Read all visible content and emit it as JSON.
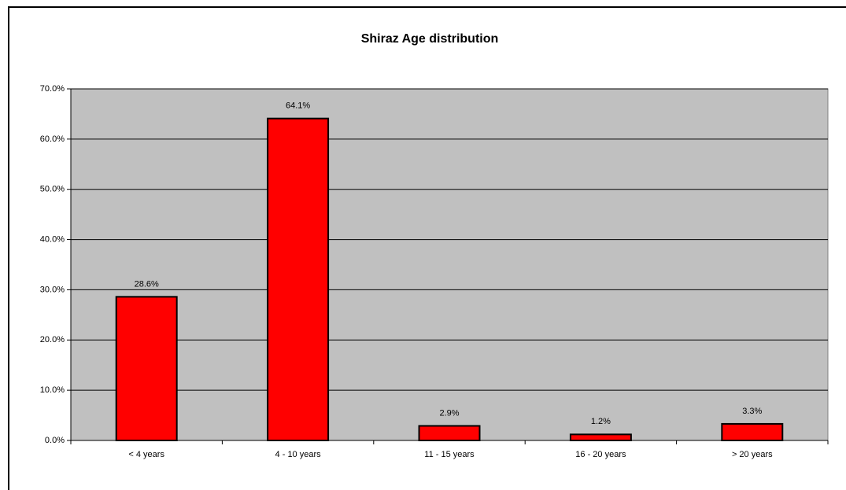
{
  "chart_data": {
    "type": "bar",
    "title": "Shiraz Age distribution",
    "categories": [
      "< 4 years",
      "4 - 10 years",
      "11 - 15 years",
      "16 - 20 years",
      "> 20 years"
    ],
    "values": [
      28.6,
      64.1,
      2.9,
      1.2,
      3.3
    ],
    "value_labels": [
      "28.6%",
      "64.1%",
      "2.9%",
      "1.2%",
      "3.3%"
    ],
    "color": "#ff0000",
    "ylim": [
      0,
      70
    ],
    "yticks": [
      {
        "value": 0,
        "label": "0.0%"
      },
      {
        "value": 10,
        "label": "10.0%"
      },
      {
        "value": 20,
        "label": "20.0%"
      },
      {
        "value": 30,
        "label": "30.0%"
      },
      {
        "value": 40,
        "label": "40.0%"
      },
      {
        "value": 50,
        "label": "50.0%"
      },
      {
        "value": 60,
        "label": "60.0%"
      },
      {
        "value": 70,
        "label": "70.0%"
      }
    ],
    "grid": true
  }
}
